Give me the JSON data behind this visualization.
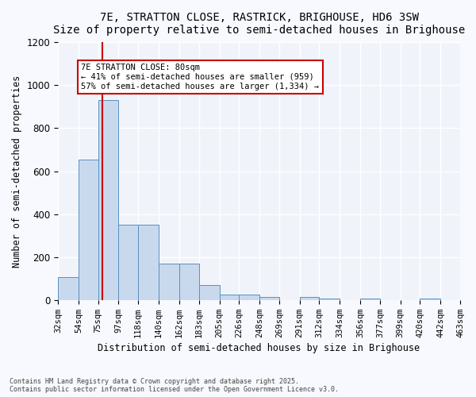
{
  "title": "7E, STRATTON CLOSE, RASTRICK, BRIGHOUSE, HD6 3SW",
  "subtitle": "Size of property relative to semi-detached houses in Brighouse",
  "xlabel": "Distribution of semi-detached houses by size in Brighouse",
  "ylabel": "Number of semi-detached properties",
  "bar_color": "#c9d9ed",
  "bar_edge_color": "#5a8fc0",
  "background_color": "#f0f4fa",
  "grid_color": "#ffffff",
  "annotation_box_color": "#cc0000",
  "property_line_x": 80,
  "annotation_text": "7E STRATTON CLOSE: 80sqm\n← 41% of semi-detached houses are smaller (959)\n57% of semi-detached houses are larger (1,334) →",
  "bins": [
    32,
    54,
    75,
    97,
    118,
    140,
    162,
    183,
    205,
    226,
    248,
    269,
    291,
    312,
    334,
    356,
    377,
    399,
    420,
    442,
    463
  ],
  "bin_labels": [
    "32sqm",
    "54sqm",
    "75sqm",
    "97sqm",
    "118sqm",
    "140sqm",
    "162sqm",
    "183sqm",
    "205sqm",
    "226sqm",
    "248sqm",
    "269sqm",
    "291sqm",
    "312sqm",
    "334sqm",
    "356sqm",
    "377sqm",
    "399sqm",
    "420sqm",
    "442sqm",
    "463sqm"
  ],
  "values": [
    105,
    655,
    930,
    350,
    350,
    170,
    170,
    70,
    25,
    25,
    15,
    0,
    15,
    5,
    0,
    5,
    0,
    0,
    5,
    0,
    0
  ],
  "ylim": [
    0,
    1200
  ],
  "yticks": [
    0,
    200,
    400,
    600,
    800,
    1000,
    1200
  ],
  "footer": "Contains HM Land Registry data © Crown copyright and database right 2025.\nContains public sector information licensed under the Open Government Licence v3.0.",
  "fig_width": 6.0,
  "fig_height": 5.0,
  "dpi": 100
}
